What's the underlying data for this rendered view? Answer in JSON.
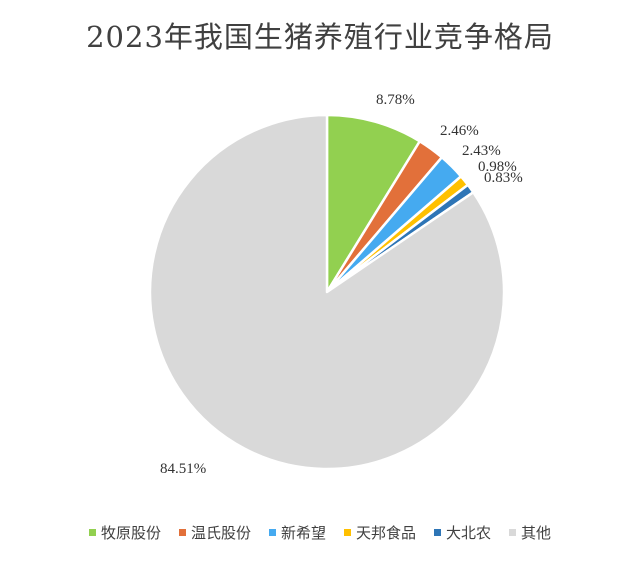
{
  "chart_data": {
    "type": "pie",
    "title": "2023年我国生猪养殖行业竞争格局",
    "slices": [
      {
        "name": "牧原股份",
        "value": 8.78,
        "label": "8.78%",
        "color": "#92d050"
      },
      {
        "name": "温氏股份",
        "value": 2.46,
        "label": "2.46%",
        "color": "#e2703a"
      },
      {
        "name": "新希望",
        "value": 2.43,
        "label": "2.43%",
        "color": "#45aaf0"
      },
      {
        "name": "天邦食品",
        "value": 0.98,
        "label": "0.98%",
        "color": "#ffc000"
      },
      {
        "name": "大北农",
        "value": 0.83,
        "label": "0.83%",
        "color": "#2e75b6"
      },
      {
        "name": "其他",
        "value": 84.51,
        "label": "84.51%",
        "color": "#d9d9d9"
      }
    ],
    "legend_position": "bottom"
  }
}
